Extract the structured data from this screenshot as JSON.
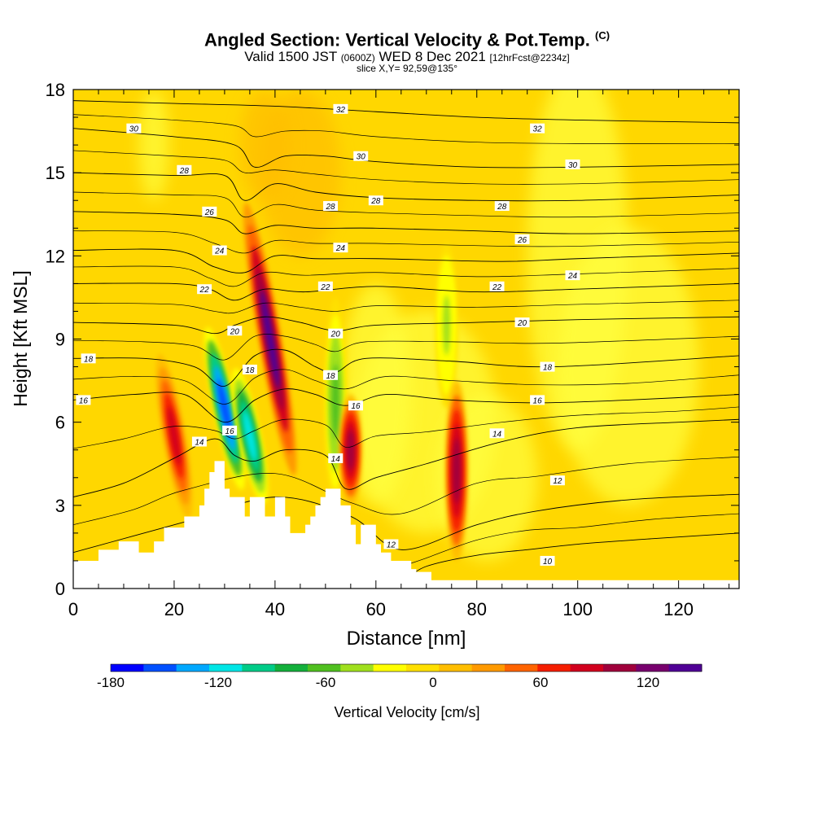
{
  "header": {
    "title": "Angled Section: Vertical Velocity & Pot.Temp.",
    "title_unit": "(C)",
    "valid_main": "Valid 1500 JST",
    "valid_z": "(0600Z)",
    "valid_date": "WED 8 Dec 2021",
    "forecast": "[12hrFcst@2234z]",
    "slice": "slice X,Y= 92,59@135°"
  },
  "chart_data": {
    "type": "heatmap",
    "xlabel": "Distance [nm]",
    "ylabel": "Height [Kft MSL]",
    "xlim": [
      0,
      132
    ],
    "ylim": [
      0,
      18
    ],
    "x_ticks": [
      0,
      20,
      40,
      60,
      80,
      100,
      120
    ],
    "y_ticks": [
      0,
      3,
      6,
      9,
      12,
      15,
      18
    ],
    "colorbar": {
      "label": "Vertical Velocity [cm/s]",
      "range": [
        -180,
        150
      ],
      "tick_labels": [
        "-180",
        "-120",
        "-60",
        "0",
        "60",
        "120"
      ],
      "colors": [
        "#0000ff",
        "#0050ff",
        "#00a8ff",
        "#00e6e6",
        "#00cc88",
        "#14b03c",
        "#50c020",
        "#a0e01e",
        "#ffff00",
        "#ffe000",
        "#ffbe00",
        "#ff9a00",
        "#ff6400",
        "#f51e00",
        "#d2001e",
        "#a0003c",
        "#78006e",
        "#500096"
      ]
    },
    "velocity_bands": [
      {
        "x": 20,
        "ytop": 8.5,
        "ybot": 2.5,
        "value": 80
      },
      {
        "x": 30,
        "ytop": 9.5,
        "ybot": 3.5,
        "value": -160
      },
      {
        "x": 35,
        "ytop": 8.0,
        "ybot": 3.0,
        "value": -120
      },
      {
        "x": 39,
        "ytop": 14.0,
        "ybot": 4.0,
        "value": 140
      },
      {
        "x": 52,
        "ytop": 10.5,
        "ybot": 3.0,
        "value": -60
      },
      {
        "x": 55,
        "ytop": 7.0,
        "ybot": 3.0,
        "value": 100
      },
      {
        "x": 74,
        "ytop": 12.5,
        "ybot": 6.5,
        "value": -40
      },
      {
        "x": 76,
        "ytop": 7.5,
        "ybot": 1.0,
        "value": 100
      }
    ],
    "terrain": [
      [
        0,
        1.0
      ],
      [
        5,
        1.0
      ],
      [
        5,
        1.4
      ],
      [
        9,
        1.4
      ],
      [
        9,
        1.7
      ],
      [
        13,
        1.7
      ],
      [
        13,
        1.3
      ],
      [
        16,
        1.3
      ],
      [
        16,
        1.7
      ],
      [
        18,
        1.7
      ],
      [
        18,
        2.2
      ],
      [
        22,
        2.2
      ],
      [
        22,
        2.6
      ],
      [
        25,
        2.6
      ],
      [
        25,
        3.0
      ],
      [
        26,
        3.0
      ],
      [
        26,
        3.6
      ],
      [
        27,
        3.6
      ],
      [
        27,
        4.2
      ],
      [
        28,
        4.2
      ],
      [
        28,
        4.6
      ],
      [
        30,
        4.6
      ],
      [
        30,
        3.6
      ],
      [
        31,
        3.6
      ],
      [
        31,
        3.3
      ],
      [
        34,
        3.3
      ],
      [
        34,
        2.6
      ],
      [
        35,
        2.6
      ],
      [
        35,
        3.3
      ],
      [
        38,
        3.3
      ],
      [
        38,
        2.6
      ],
      [
        40,
        2.6
      ],
      [
        40,
        3.3
      ],
      [
        42,
        3.3
      ],
      [
        42,
        2.6
      ],
      [
        43,
        2.6
      ],
      [
        43,
        2.0
      ],
      [
        46,
        2.0
      ],
      [
        46,
        2.3
      ],
      [
        47,
        2.3
      ],
      [
        47,
        2.6
      ],
      [
        48,
        2.6
      ],
      [
        48,
        3.0
      ],
      [
        49,
        3.0
      ],
      [
        49,
        3.3
      ],
      [
        50,
        3.3
      ],
      [
        50,
        3.6
      ],
      [
        53,
        3.6
      ],
      [
        53,
        3.0
      ],
      [
        55,
        3.0
      ],
      [
        55,
        2.3
      ],
      [
        56,
        2.3
      ],
      [
        56,
        1.6
      ],
      [
        57,
        1.6
      ],
      [
        57,
        2.3
      ],
      [
        60,
        2.3
      ],
      [
        60,
        1.6
      ],
      [
        61,
        1.6
      ],
      [
        61,
        1.3
      ],
      [
        63,
        1.3
      ],
      [
        63,
        1.0
      ],
      [
        67,
        1.0
      ],
      [
        67,
        0.7
      ],
      [
        68,
        0.7
      ],
      [
        68,
        0.6
      ],
      [
        71,
        0.6
      ],
      [
        71,
        0.3
      ],
      [
        132,
        0.3
      ]
    ],
    "isentropes": [
      {
        "label": "10",
        "pts": [
          [
            66,
            0.3
          ],
          [
            70,
            0.8
          ],
          [
            80,
            1.2
          ],
          [
            90,
            1.4
          ],
          [
            100,
            1.6
          ],
          [
            115,
            1.8
          ],
          [
            132,
            2.0
          ]
        ]
      },
      {
        "label": "12",
        "pts": [
          [
            0,
            1.3
          ],
          [
            12,
            1.9
          ],
          [
            22,
            2.4
          ],
          [
            40,
            3.3
          ],
          [
            55,
            2.6
          ],
          [
            65,
            1.4
          ],
          [
            80,
            2.3
          ],
          [
            92,
            2.8
          ],
          [
            110,
            3.2
          ],
          [
            132,
            3.4
          ]
        ]
      },
      {
        "label": "14",
        "pts": [
          [
            0,
            3.3
          ],
          [
            10,
            3.8
          ],
          [
            20,
            4.7
          ],
          [
            28,
            5.4
          ],
          [
            32,
            4.8
          ],
          [
            36,
            4.6
          ],
          [
            42,
            5.0
          ],
          [
            50,
            4.8
          ],
          [
            54,
            3.6
          ],
          [
            60,
            4.0
          ],
          [
            70,
            4.5
          ],
          [
            85,
            5.3
          ],
          [
            100,
            5.8
          ],
          [
            120,
            6.0
          ],
          [
            132,
            6.1
          ]
        ]
      },
      {
        "label": "16",
        "pts": [
          [
            0,
            6.8
          ],
          [
            12,
            7.0
          ],
          [
            22,
            7.0
          ],
          [
            30,
            6.0
          ],
          [
            36,
            6.8
          ],
          [
            42,
            7.2
          ],
          [
            48,
            7.0
          ],
          [
            54,
            6.6
          ],
          [
            62,
            7.0
          ],
          [
            75,
            6.8
          ],
          [
            92,
            6.7
          ],
          [
            110,
            6.8
          ],
          [
            132,
            7.0
          ]
        ]
      },
      {
        "label": "18",
        "pts": [
          [
            0,
            8.3
          ],
          [
            14,
            8.3
          ],
          [
            24,
            8.0
          ],
          [
            30,
            7.3
          ],
          [
            36,
            8.4
          ],
          [
            42,
            8.6
          ],
          [
            48,
            8.0
          ],
          [
            52,
            7.8
          ],
          [
            58,
            8.3
          ],
          [
            75,
            8.2
          ],
          [
            95,
            8.0
          ],
          [
            132,
            8.4
          ]
        ]
      },
      {
        "label": "20",
        "pts": [
          [
            0,
            9.6
          ],
          [
            20,
            9.5
          ],
          [
            28,
            9.2
          ],
          [
            32,
            9.5
          ],
          [
            38,
            9.8
          ],
          [
            45,
            9.6
          ],
          [
            52,
            9.3
          ],
          [
            60,
            9.5
          ],
          [
            80,
            9.6
          ],
          [
            100,
            9.7
          ],
          [
            132,
            9.8
          ]
        ]
      },
      {
        "label": "22",
        "pts": [
          [
            0,
            11.0
          ],
          [
            20,
            11.0
          ],
          [
            27,
            10.8
          ],
          [
            32,
            10.4
          ],
          [
            38,
            10.8
          ],
          [
            46,
            10.7
          ],
          [
            60,
            10.9
          ],
          [
            80,
            10.7
          ],
          [
            100,
            10.8
          ],
          [
            132,
            11.0
          ]
        ]
      },
      {
        "label": "24",
        "pts": [
          [
            0,
            12.2
          ],
          [
            20,
            12.2
          ],
          [
            28,
            11.6
          ],
          [
            34,
            11.4
          ],
          [
            40,
            12.0
          ],
          [
            48,
            11.9
          ],
          [
            60,
            11.9
          ],
          [
            85,
            11.8
          ],
          [
            100,
            11.9
          ],
          [
            132,
            12.1
          ]
        ]
      },
      {
        "label": "26",
        "pts": [
          [
            0,
            13.6
          ],
          [
            20,
            13.5
          ],
          [
            30,
            13.3
          ],
          [
            34,
            12.8
          ],
          [
            40,
            13.1
          ],
          [
            48,
            13.0
          ],
          [
            60,
            13.0
          ],
          [
            80,
            12.9
          ],
          [
            100,
            12.8
          ],
          [
            132,
            12.9
          ]
        ]
      },
      {
        "label": "28",
        "pts": [
          [
            0,
            15.0
          ],
          [
            20,
            14.9
          ],
          [
            30,
            14.9
          ],
          [
            34,
            14.0
          ],
          [
            40,
            14.6
          ],
          [
            48,
            14.3
          ],
          [
            60,
            14.1
          ],
          [
            80,
            14.0
          ],
          [
            100,
            14.0
          ],
          [
            132,
            14.2
          ]
        ]
      },
      {
        "label": "30",
        "pts": [
          [
            0,
            16.6
          ],
          [
            20,
            16.3
          ],
          [
            32,
            16.0
          ],
          [
            36,
            15.2
          ],
          [
            42,
            15.6
          ],
          [
            50,
            15.6
          ],
          [
            60,
            15.4
          ],
          [
            80,
            15.2
          ],
          [
            100,
            15.2
          ],
          [
            132,
            15.3
          ]
        ]
      },
      {
        "label": "32",
        "pts": [
          [
            0,
            17.6
          ],
          [
            20,
            17.5
          ],
          [
            40,
            17.4
          ],
          [
            60,
            17.2
          ],
          [
            80,
            17.0
          ],
          [
            100,
            16.9
          ],
          [
            132,
            16.8
          ]
        ]
      }
    ],
    "contour_labels": [
      {
        "text": "32",
        "x": 53,
        "y": 17.3
      },
      {
        "text": "30",
        "x": 12,
        "y": 16.6
      },
      {
        "text": "32",
        "x": 92,
        "y": 16.6
      },
      {
        "text": "30",
        "x": 57,
        "y": 15.6
      },
      {
        "text": "28",
        "x": 22,
        "y": 15.1
      },
      {
        "text": "30",
        "x": 99,
        "y": 15.3
      },
      {
        "text": "28",
        "x": 60,
        "y": 14.0
      },
      {
        "text": "26",
        "x": 27,
        "y": 13.6
      },
      {
        "text": "28",
        "x": 51,
        "y": 13.8
      },
      {
        "text": "28",
        "x": 85,
        "y": 13.8
      },
      {
        "text": "26",
        "x": 89,
        "y": 12.6
      },
      {
        "text": "24",
        "x": 29,
        "y": 12.2
      },
      {
        "text": "24",
        "x": 53,
        "y": 12.3
      },
      {
        "text": "24",
        "x": 99,
        "y": 11.3
      },
      {
        "text": "22",
        "x": 26,
        "y": 10.8
      },
      {
        "text": "22",
        "x": 50,
        "y": 10.9
      },
      {
        "text": "22",
        "x": 84,
        "y": 10.9
      },
      {
        "text": "20",
        "x": 32,
        "y": 9.3
      },
      {
        "text": "20",
        "x": 52,
        "y": 9.2
      },
      {
        "text": "20",
        "x": 89,
        "y": 9.6
      },
      {
        "text": "18",
        "x": 3,
        "y": 8.3
      },
      {
        "text": "18",
        "x": 35,
        "y": 7.9
      },
      {
        "text": "18",
        "x": 51,
        "y": 7.7
      },
      {
        "text": "18",
        "x": 94,
        "y": 8.0
      },
      {
        "text": "16",
        "x": 2,
        "y": 6.8
      },
      {
        "text": "16",
        "x": 56,
        "y": 6.6
      },
      {
        "text": "16",
        "x": 92,
        "y": 6.8
      },
      {
        "text": "14",
        "x": 25,
        "y": 5.3
      },
      {
        "text": "16",
        "x": 31,
        "y": 5.7
      },
      {
        "text": "14",
        "x": 52,
        "y": 4.7
      },
      {
        "text": "14",
        "x": 84,
        "y": 5.6
      },
      {
        "text": "12",
        "x": 96,
        "y": 3.9
      },
      {
        "text": "12",
        "x": 63,
        "y": 1.6
      },
      {
        "text": "10",
        "x": 94,
        "y": 1.0
      }
    ]
  }
}
